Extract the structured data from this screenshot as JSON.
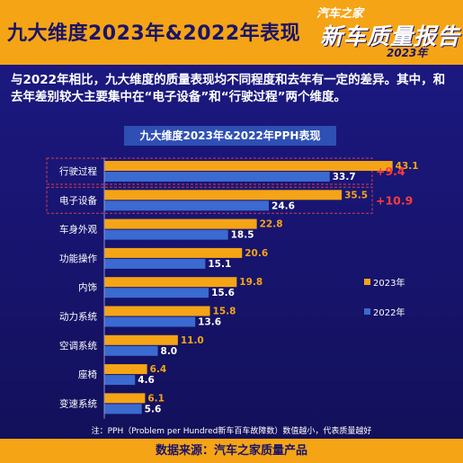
{
  "header": {
    "title": "九大维度2023年&2022年表现",
    "logo_brand": "汽车之家",
    "logo_main": "新车质量报告",
    "logo_year": "2023年"
  },
  "summary": "与2022年相比，九大维度的质量表现均不同程度和去年有一定的差异。其中，和去年差别较大主要集中在“电子设备”和“行驶过程”两个维度。",
  "footer": {
    "note": "注：PPH（Problem per Hundred新车百车故障数）数值越小，代表质量越好",
    "source": "数据来源：汽车之家质量产品"
  },
  "chart_data": {
    "type": "bar",
    "orientation": "horizontal",
    "title": "九大维度2023年&2022年PPH表现",
    "categories": [
      "行驶过程",
      "电子设备",
      "车身外观",
      "功能操作",
      "内饰",
      "动力系统",
      "空调系统",
      "座椅",
      "变速系统"
    ],
    "series": [
      {
        "name": "2023年",
        "color": "#f5a416",
        "values": [
          43.1,
          35.5,
          22.8,
          20.6,
          19.8,
          15.8,
          11.0,
          6.4,
          6.1
        ]
      },
      {
        "name": "2022年",
        "color": "#3b6ad0",
        "values": [
          33.7,
          24.6,
          18.5,
          15.1,
          15.6,
          13.6,
          8.0,
          4.6,
          5.6
        ]
      }
    ],
    "value_labels": [
      "43.1",
      "35.5",
      "22.8",
      "20.6",
      "19.8",
      "15.8",
      "11.0",
      "6.4",
      "6.1"
    ],
    "value_labels_2022": [
      "33.7",
      "24.6",
      "18.5",
      "15.1",
      "15.6",
      "13.6",
      "8.0",
      "4.6",
      "5.6"
    ],
    "annotations": [
      {
        "category": "行驶过程",
        "text": "+9.4"
      },
      {
        "category": "电子设备",
        "text": "+10.9"
      }
    ],
    "highlight_categories": [
      "行驶过程",
      "电子设备"
    ],
    "legend_position": "right",
    "grid": false
  }
}
